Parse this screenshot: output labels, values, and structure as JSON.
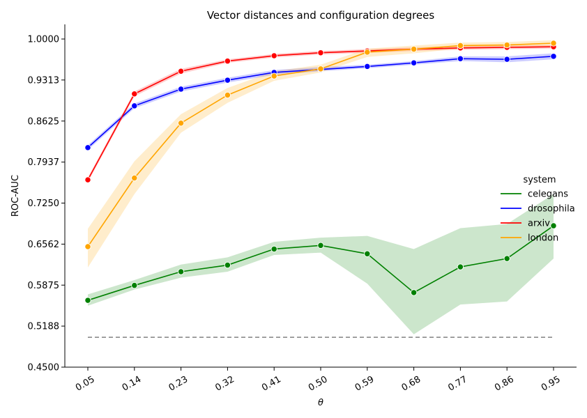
{
  "chart_data": {
    "type": "line",
    "title": "Vector distances and configuration degrees",
    "xlabel": "θ",
    "ylabel": "ROC-AUC",
    "x": [
      "0.05",
      "0.14",
      "0.23",
      "0.32",
      "0.41",
      "0.50",
      "0.59",
      "0.68",
      "0.77",
      "0.86",
      "0.95"
    ],
    "yticks": [
      "0.4500",
      "0.5188",
      "0.5875",
      "0.6562",
      "0.7250",
      "0.7937",
      "0.8625",
      "0.9313",
      "1.0000"
    ],
    "ylim": [
      0.45,
      1.025
    ],
    "legend_title": "system",
    "legend_position": "right",
    "grid": false,
    "reference_line": {
      "value": 0.5,
      "color": "#808080"
    },
    "series": [
      {
        "name": "celegans",
        "color": "#008000",
        "values": [
          0.562,
          0.587,
          0.61,
          0.621,
          0.648,
          0.654,
          0.64,
          0.575,
          0.618,
          0.632,
          0.687
        ],
        "band_low": [
          0.553,
          0.58,
          0.6,
          0.61,
          0.638,
          0.642,
          0.59,
          0.505,
          0.555,
          0.56,
          0.632
        ],
        "band_high": [
          0.572,
          0.596,
          0.622,
          0.634,
          0.66,
          0.667,
          0.67,
          0.648,
          0.683,
          0.69,
          0.74
        ]
      },
      {
        "name": "drosophila",
        "color": "#0000ff",
        "values": [
          0.818,
          0.888,
          0.916,
          0.931,
          0.944,
          0.949,
          0.954,
          0.96,
          0.967,
          0.966,
          0.971
        ],
        "band_low": [
          0.814,
          0.884,
          0.912,
          0.927,
          0.94,
          0.946,
          0.951,
          0.957,
          0.963,
          0.961,
          0.966
        ],
        "band_high": [
          0.822,
          0.892,
          0.92,
          0.935,
          0.948,
          0.953,
          0.957,
          0.963,
          0.971,
          0.971,
          0.976
        ]
      },
      {
        "name": "arxiv",
        "color": "#ff0000",
        "values": [
          0.764,
          0.908,
          0.946,
          0.963,
          0.972,
          0.977,
          0.98,
          0.983,
          0.985,
          0.986,
          0.987
        ],
        "band_low": [
          0.76,
          0.904,
          0.942,
          0.96,
          0.969,
          0.974,
          0.977,
          0.98,
          0.982,
          0.983,
          0.984
        ],
        "band_high": [
          0.768,
          0.912,
          0.95,
          0.966,
          0.975,
          0.98,
          0.983,
          0.986,
          0.988,
          0.989,
          0.99
        ]
      },
      {
        "name": "london",
        "color": "#ffa500",
        "values": [
          0.652,
          0.767,
          0.859,
          0.906,
          0.938,
          0.95,
          0.978,
          0.983,
          0.989,
          0.99,
          0.993
        ],
        "band_low": [
          0.617,
          0.74,
          0.843,
          0.893,
          0.93,
          0.944,
          0.97,
          0.976,
          0.984,
          0.985,
          0.988
        ],
        "band_high": [
          0.682,
          0.795,
          0.874,
          0.918,
          0.946,
          0.957,
          0.984,
          0.989,
          0.994,
          0.995,
          0.998
        ]
      }
    ]
  }
}
